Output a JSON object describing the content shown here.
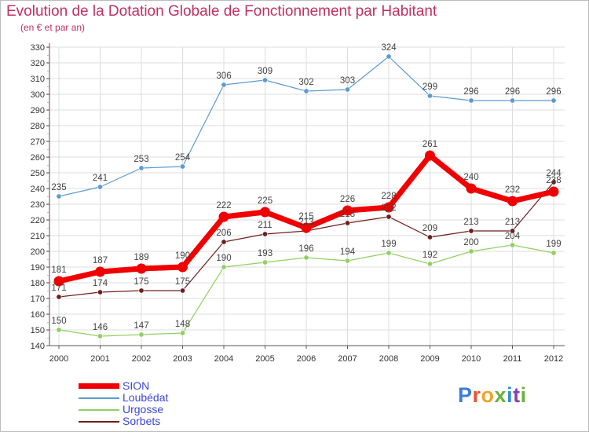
{
  "header": {
    "title": "Evolution de la Dotation Globale de Fonctionnement par Habitant",
    "subtitle": "(en € et par an)"
  },
  "logo": {
    "text": "Proxiti",
    "letter_colors": [
      "#3d7fd0",
      "#e8542b",
      "#f1a42b",
      "#67b33a",
      "#2f8fd6",
      "#8a3fb0",
      "#67b33a"
    ]
  },
  "chart_data": {
    "type": "line",
    "x": [
      2000,
      2001,
      2002,
      2003,
      2004,
      2005,
      2006,
      2007,
      2008,
      2009,
      2010,
      2011,
      2012
    ],
    "ylim": [
      140,
      330
    ],
    "ytick_step": 10,
    "grid": true,
    "legend_position": "bottom-left",
    "series": [
      {
        "name": "SION",
        "color": "#f00000",
        "values": [
          181,
          187,
          189,
          190,
          222,
          225,
          215,
          226,
          228,
          261,
          240,
          232,
          238
        ]
      },
      {
        "name": "Loubédat",
        "color": "#5b9bd0",
        "values": [
          235,
          241,
          253,
          254,
          306,
          309,
          302,
          303,
          324,
          299,
          296,
          296,
          296
        ]
      },
      {
        "name": "Urgosse",
        "color": "#90d060",
        "values": [
          150,
          146,
          147,
          148,
          190,
          193,
          196,
          194,
          199,
          192,
          200,
          204,
          199
        ]
      },
      {
        "name": "Sorbets",
        "color": "#6e1e1e",
        "values": [
          171,
          174,
          175,
          175,
          206,
          211,
          213,
          218,
          222,
          209,
          213,
          213,
          244
        ]
      }
    ]
  }
}
